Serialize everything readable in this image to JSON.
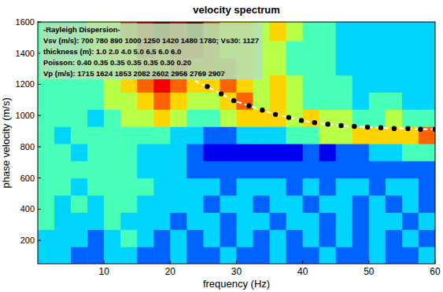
{
  "chart_data": {
    "type": "heatmap",
    "title": "velocity spectrum",
    "x_label": "frequency (Hz)",
    "y_label": "phase velocity (m/s)",
    "xlim": [
      0,
      60
    ],
    "ylim": [
      50,
      1600
    ],
    "xticks": [
      10,
      20,
      30,
      40,
      50,
      60
    ],
    "yticks": [
      200,
      400,
      600,
      800,
      1000,
      1200,
      1400,
      1600
    ],
    "heatmap": {
      "x_edges": [
        0,
        2.5,
        5,
        7.5,
        10,
        12.5,
        15,
        17.5,
        20,
        22.5,
        25,
        27.5,
        30,
        32.5,
        35,
        37.5,
        40,
        42.5,
        45,
        47.5,
        50,
        52.5,
        55,
        57.5,
        60
      ],
      "y_edges": [
        50,
        160,
        270,
        380,
        490,
        600,
        710,
        820,
        930,
        1040,
        1150,
        1260,
        1370,
        1480,
        1600
      ],
      "color_range": [
        0,
        9
      ],
      "cells": [
        [
          3,
          3,
          2,
          2,
          3,
          3,
          2,
          2,
          3,
          2,
          2,
          3,
          2,
          2,
          3,
          2,
          2,
          3,
          2,
          2,
          3,
          2,
          2,
          3
        ],
        [
          3,
          3,
          3,
          2,
          3,
          4,
          3,
          2,
          3,
          2,
          3,
          2,
          3,
          2,
          3,
          2,
          3,
          2,
          3,
          2,
          3,
          2,
          3,
          2
        ],
        [
          4,
          3,
          3,
          3,
          4,
          3,
          3,
          3,
          2,
          3,
          3,
          2,
          3,
          3,
          2,
          3,
          3,
          2,
          3,
          2,
          3,
          3,
          2,
          3
        ],
        [
          4,
          3,
          4,
          3,
          4,
          4,
          3,
          3,
          3,
          3,
          2,
          3,
          3,
          2,
          3,
          3,
          2,
          3,
          3,
          2,
          3,
          2,
          3,
          2
        ],
        [
          4,
          4,
          3,
          4,
          4,
          4,
          4,
          3,
          3,
          3,
          3,
          2,
          3,
          3,
          3,
          2,
          3,
          2,
          3,
          3,
          2,
          3,
          3,
          2
        ],
        [
          4,
          4,
          4,
          4,
          4,
          4,
          3,
          3,
          3,
          2,
          2,
          2,
          2,
          2,
          2,
          2,
          2,
          2,
          2,
          2,
          2,
          2,
          2,
          2
        ],
        [
          4,
          4,
          3,
          4,
          4,
          4,
          3,
          3,
          3,
          2,
          1,
          1,
          1,
          1,
          1,
          1,
          2,
          1,
          2,
          2,
          3,
          3,
          4,
          4
        ],
        [
          4,
          3,
          4,
          4,
          4,
          4,
          4,
          4,
          3,
          3,
          2,
          2,
          3,
          3,
          3,
          4,
          4,
          5,
          5,
          6,
          6,
          6,
          6,
          7
        ],
        [
          4,
          4,
          4,
          3,
          4,
          5,
          5,
          6,
          5,
          4,
          4,
          5,
          6,
          6,
          6,
          5,
          6,
          5,
          5,
          4,
          4,
          5,
          4,
          4
        ],
        [
          4,
          4,
          4,
          4,
          5,
          5,
          6,
          7,
          6,
          5,
          5,
          6,
          7,
          5,
          6,
          5,
          4,
          4,
          4,
          3,
          4,
          4,
          3,
          3
        ],
        [
          4,
          4,
          4,
          4,
          5,
          6,
          7,
          8,
          7,
          6,
          6,
          7,
          6,
          5,
          6,
          5,
          4,
          4,
          4,
          3,
          3,
          3,
          3,
          3
        ],
        [
          4,
          4,
          4,
          5,
          5,
          6,
          7,
          7,
          8,
          7,
          7,
          7,
          6,
          5,
          5,
          4,
          4,
          4,
          3,
          3,
          3,
          3,
          3,
          3
        ],
        [
          4,
          4,
          4,
          5,
          6,
          6,
          8,
          7,
          8,
          8,
          7,
          6,
          6,
          5,
          5,
          4,
          4,
          4,
          3,
          3,
          3,
          3,
          3,
          3
        ],
        [
          4,
          4,
          4,
          5,
          5,
          7,
          8,
          9,
          8,
          9,
          7,
          6,
          6,
          5,
          6,
          5,
          4,
          4,
          3,
          3,
          3,
          3,
          3,
          3
        ]
      ]
    },
    "series": [
      {
        "type": "line",
        "line_style": "dashed",
        "color": "#ffffff",
        "x": [
          23.7,
          25.6,
          27.7,
          29.6,
          31.9,
          33.9,
          35.9,
          37.9,
          39.8,
          41.8,
          43.8,
          45.8,
          47.8,
          49.8,
          51.8,
          53.8,
          55.9,
          57.8,
          60.0
        ],
        "values": [
          1222,
          1186,
          1139,
          1096,
          1063,
          1035,
          1007,
          988,
          969,
          955,
          945,
          936,
          931,
          926,
          922,
          917,
          917,
          912,
          912
        ]
      },
      {
        "type": "scatter",
        "marker": "circle",
        "color": "#000000",
        "x": [
          25.6,
          27.7,
          29.6,
          31.9,
          33.9,
          35.9,
          37.9,
          39.8,
          41.8,
          43.8,
          45.8,
          47.8,
          49.8,
          51.8,
          53.8,
          55.9,
          57.8,
          60.0
        ],
        "values": [
          1186,
          1139,
          1096,
          1063,
          1035,
          1007,
          988,
          969,
          955,
          945,
          936,
          931,
          926,
          922,
          917,
          917,
          912,
          912
        ]
      }
    ],
    "annotations": [
      "-Rayleigh Dispersion-",
      "Vsv (m/s): 700 780 890 1000 1250 1420 1480 1780; Vs30: 1127",
      "thickness (m): 1.0 2.0 4.0 5.0 6.5 6.0 6.0",
      "Poisson: 0.40 0.35 0.35 0.35 0.35 0.30 0.20",
      "Vp (m/s): 1715 1624 1853 2082 2602 2956 2769 2907"
    ]
  }
}
